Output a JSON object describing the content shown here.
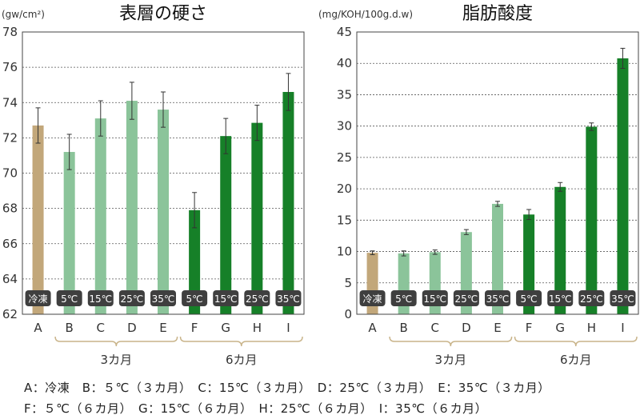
{
  "colors": {
    "frozen": "#c2a77a",
    "light_green": "#8bc49a",
    "dark_green": "#168028",
    "label_box": "#3f3f3f",
    "bracket": "#c9b48a"
  },
  "chart_data": [
    {
      "type": "bar",
      "title": "表層の硬さ",
      "unit_label": "(gw/cm²)",
      "categories": [
        "A",
        "B",
        "C",
        "D",
        "E",
        "F",
        "G",
        "H",
        "I"
      ],
      "bar_labels": [
        "冷凍",
        "5℃",
        "15℃",
        "25℃",
        "35℃",
        "5℃",
        "15℃",
        "25℃",
        "35℃"
      ],
      "values": [
        72.7,
        71.2,
        73.1,
        74.1,
        73.6,
        67.9,
        72.1,
        72.85,
        74.6
      ],
      "errors": [
        1.0,
        1.0,
        1.0,
        1.05,
        1.0,
        1.0,
        1.0,
        1.0,
        1.05
      ],
      "color_groups": [
        "frozen",
        "light_green",
        "light_green",
        "light_green",
        "light_green",
        "dark_green",
        "dark_green",
        "dark_green",
        "dark_green"
      ],
      "ylim": [
        62,
        78
      ],
      "yticks": [
        62,
        64,
        66,
        68,
        70,
        72,
        74,
        76,
        78
      ],
      "grid": "horizontal-dotted",
      "groups": [
        {
          "label": "3カ月",
          "from": 1,
          "to": 4
        },
        {
          "label": "6カ月",
          "from": 5,
          "to": 8
        }
      ]
    },
    {
      "type": "bar",
      "title": "脂肪酸度",
      "unit_label": "(mg/KOH/100g.d.w)",
      "categories": [
        "A",
        "B",
        "C",
        "D",
        "E",
        "F",
        "G",
        "H",
        "I"
      ],
      "bar_labels": [
        "冷凍",
        "5℃",
        "15℃",
        "25℃",
        "35℃",
        "5℃",
        "15℃",
        "25℃",
        "35℃"
      ],
      "values": [
        9.8,
        9.7,
        9.9,
        13.1,
        17.6,
        15.9,
        20.3,
        29.9,
        40.8
      ],
      "errors": [
        0.3,
        0.4,
        0.35,
        0.4,
        0.4,
        0.8,
        0.7,
        0.6,
        1.6
      ],
      "color_groups": [
        "frozen",
        "light_green",
        "light_green",
        "light_green",
        "light_green",
        "dark_green",
        "dark_green",
        "dark_green",
        "dark_green"
      ],
      "ylim": [
        0,
        45
      ],
      "yticks": [
        0,
        5,
        10,
        15,
        20,
        25,
        30,
        35,
        40,
        45
      ],
      "grid": "horizontal-dotted",
      "groups": [
        {
          "label": "3カ月",
          "from": 1,
          "to": 4
        },
        {
          "label": "6カ月",
          "from": 5,
          "to": 8
        }
      ]
    }
  ],
  "legend": {
    "line1": "A：冷凍　B：５℃（３カ月）　C：15℃（３カ月）　D：25℃（３カ月）　E：35℃（３カ月）",
    "line2": "F：５℃（６カ月）　G：15℃（６カ月）　H：25℃（６カ月）　I：35℃（６カ月）"
  }
}
